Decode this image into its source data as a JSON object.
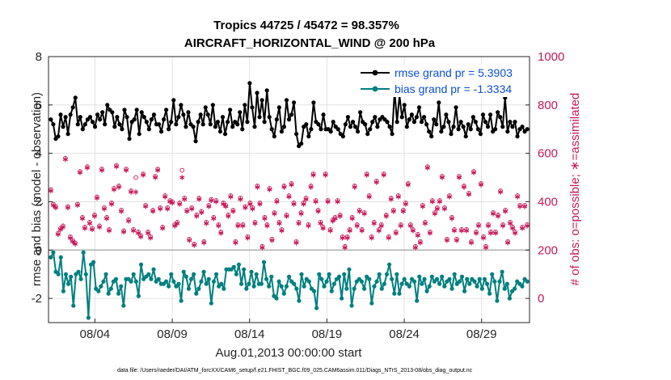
{
  "chart_data": {
    "type": "line",
    "title": "Tropics 44725 / 45472 = 98.357%",
    "subtitle": "AIRCRAFT_HORIZONTAL_WIND @ 200 hPa",
    "xlabel": "Aug.01,2013 00:00:00 start",
    "ylabel": "rmse and bias (model - observation)",
    "ylabel_right": "# of obs: o=possible; ∗=assimilated",
    "x_ticks": [
      "08/04",
      "08/09",
      "08/14",
      "08/19",
      "08/24",
      "08/29"
    ],
    "x_range": [
      1.0,
      32.1
    ],
    "x_tick_values": [
      4,
      9,
      14,
      19,
      24,
      29
    ],
    "ylim": [
      -3,
      8
    ],
    "y_ticks": [
      -2,
      0,
      2,
      4,
      6,
      8
    ],
    "ylim_right": [
      -100,
      1000
    ],
    "y_ticks_right": [
      0,
      200,
      400,
      600,
      800,
      1000
    ],
    "legend_position": "top-right",
    "series": [
      {
        "name": "rmse grand pr = 5.3903",
        "axis": "left",
        "color": "#000000",
        "values": [
          5.4,
          5.2,
          4.6,
          4.7,
          5.6,
          5.1,
          5.5,
          4.8,
          5.6,
          5.9,
          6.3,
          5.2,
          5.5,
          5.0,
          5.2,
          5.4,
          5.5,
          5.3,
          5.1,
          5.6,
          5.4,
          5.7,
          5.2,
          6.0,
          5.8,
          5.7,
          5.1,
          5.5,
          5.2,
          5.0,
          5.8,
          5.5,
          4.6,
          5.3,
          5.4,
          5.8,
          4.8,
          5.7,
          5.5,
          5.3,
          5.0,
          5.4,
          5.6,
          5.2,
          5.2,
          4.9,
          5.4,
          5.8,
          5.0,
          5.3,
          6.2,
          5.2,
          5.5,
          6.0,
          5.6,
          5.1,
          5.7,
          5.2,
          5.1,
          4.5,
          5.3,
          5.6,
          5.2,
          5.9,
          5.6,
          5.2,
          6.0,
          5.1,
          5.3,
          4.9,
          5.5,
          4.8,
          5.3,
          5.8,
          5.1,
          5.3,
          5.2,
          5.7,
          5.0,
          6.0,
          5.3,
          6.9,
          5.9,
          5.1,
          6.5,
          5.5,
          6.2,
          5.3,
          6.6,
          5.5,
          5.0,
          4.7,
          5.4,
          5.9,
          4.9,
          5.1,
          6.2,
          5.4,
          5.6,
          6.1,
          4.8,
          4.3,
          4.4,
          5.1,
          5.2,
          4.7,
          5.0,
          6.1,
          5.3,
          5.2,
          5.0,
          5.6,
          5.0,
          5.0,
          4.9,
          5.3,
          5.1,
          5.0,
          4.8,
          4.7,
          5.2,
          5.5,
          5.1,
          5.3,
          5.1,
          4.9,
          5.7,
          5.3,
          5.2,
          4.8,
          5.0,
          5.3,
          5.5,
          5.1,
          5.4,
          5.5,
          5.4,
          5.3,
          5.1,
          4.8,
          6.6,
          5.3,
          6.4,
          5.5,
          6.0,
          5.1,
          5.4,
          5.6,
          5.3,
          5.5,
          5.9,
          5.3,
          5.5,
          5.2,
          4.9,
          4.7,
          5.4,
          5.2,
          6.1,
          4.9,
          5.1,
          5.6,
          5.3,
          4.8,
          5.1,
          5.9,
          5.0,
          5.3,
          5.1,
          4.7,
          5.2,
          5.0,
          5.5,
          5.3,
          5.0,
          4.8,
          5.6,
          5.3,
          5.1,
          5.6,
          4.9,
          5.0,
          5.7,
          5.5,
          5.1,
          6.3,
          4.9,
          5.3,
          5.1,
          5.3,
          4.7,
          5.0,
          5.1,
          4.9,
          5.0
        ]
      },
      {
        "name": "bias grand pr = -1.3334",
        "axis": "left",
        "color": "#007f7f",
        "values": [
          -0.3,
          -0.1,
          -0.9,
          -1.0,
          -0.3,
          -1.7,
          -1.0,
          -1.4,
          -1.1,
          -2.3,
          -1.0,
          -0.9,
          -1.2,
          -0.1,
          -1.0,
          -2.8,
          -0.6,
          -0.5,
          -1.6,
          -1.7,
          -1.5,
          -1.3,
          -1.0,
          -1.8,
          -1.6,
          -1.3,
          -1.2,
          -1.8,
          -1.5,
          -2.3,
          -1.2,
          -1.2,
          -1.3,
          -1.0,
          -1.3,
          -1.9,
          -0.6,
          -1.2,
          -1.1,
          -1.0,
          -1.2,
          -0.8,
          -1.3,
          -1.2,
          -1.4,
          -1.4,
          -1.3,
          -1.5,
          -1.0,
          -1.3,
          -1.5,
          -1.4,
          -2.1,
          -0.9,
          -1.1,
          -1.6,
          -1.2,
          -1.0,
          -1.8,
          -1.6,
          -1.3,
          -0.9,
          -1.4,
          -1.2,
          -2.2,
          -1.3,
          -1.0,
          -1.5,
          -1.4,
          -1.6,
          -0.8,
          -0.8,
          -0.8,
          -0.7,
          -1.0,
          -0.6,
          -1.4,
          -0.8,
          -1.6,
          -1.4,
          -0.9,
          -1.5,
          -1.0,
          -1.4,
          -1.4,
          -0.5,
          -1.2,
          -1.5,
          -1.1,
          -1.9,
          -2.0,
          -1.3,
          -1.5,
          -1.8,
          -1.5,
          -1.1,
          -1.3,
          -1.4,
          -1.6,
          -2.1,
          -1.0,
          -1.5,
          -1.2,
          -1.3,
          -1.6,
          -1.7,
          -2.4,
          -1.0,
          -1.2,
          -1.5,
          -1.3,
          -1.0,
          -1.7,
          -1.4,
          -1.2,
          -1.1,
          -2.0,
          -1.0,
          -1.6,
          -0.8,
          -2.3,
          -1.6,
          -1.3,
          -1.2,
          -1.3,
          -1.6,
          -1.1,
          -1.2,
          -2.2,
          -1.5,
          -1.3,
          -1.0,
          -1.6,
          -1.4,
          -1.0,
          -0.6,
          -1.2,
          -1.8,
          -1.0,
          -1.8,
          -1.4,
          -1.2,
          -1.4,
          -1.5,
          -1.2,
          -1.3,
          -2.1,
          -1.1,
          -1.4,
          -1.2,
          -1.7,
          -1.5,
          -1.1,
          -1.3,
          -1.2,
          -1.4,
          -1.1,
          -1.5,
          -1.3,
          -1.2,
          -1.6,
          -1.0,
          -1.4,
          -1.3,
          -1.1,
          -1.7,
          -1.2,
          -1.4,
          -1.2,
          -1.3,
          -1.5,
          -1.2,
          -1.6,
          -1.2,
          -1.4,
          -1.8,
          -1.0,
          -1.3,
          -2.1,
          -1.3,
          -0.9,
          -1.6,
          -1.4,
          -2.0,
          -1.7,
          -1.6,
          -1.3,
          -1.4,
          -1.5,
          -1.2,
          -1.3
        ]
      },
      {
        "name": "assimilated",
        "axis": "right",
        "color": "#c8185a",
        "marker": "asterisk",
        "values": [
          445,
          385,
          375,
          265,
          285,
          295,
          575,
          375,
          250,
          235,
          225,
          385,
          520,
          330,
          290,
          540,
          310,
          285,
          340,
          415,
          295,
          530,
          370,
          330,
          280,
          390,
          450,
          545,
          460,
          360,
          275,
          530,
          320,
          440,
          280,
          440,
          270,
          255,
          510,
          380,
          270,
          250,
          360,
          500,
          530,
          370,
          290,
          420,
          370,
          400,
          395,
          300,
          310,
          390,
          500,
          410,
          360,
          240,
          370,
          220,
          340,
          410,
          355,
          230,
          310,
          380,
          405,
          330,
          400,
          300,
          270,
          390,
          380,
          340,
          420,
          360,
          230,
          300,
          410,
          300,
          375,
          250,
          390,
          370,
          310,
          460,
          390,
          210,
          330,
          300,
          450,
          240,
          350,
          400,
          310,
          280,
          460,
          340,
          420,
          470,
          390,
          230,
          310,
          350,
          390,
          410,
          300,
          460,
          510,
          400,
          360,
          310,
          290,
          510,
          400,
          280,
          320,
          330,
          400,
          340,
          250,
          210,
          250,
          280,
          330,
          460,
          300,
          360,
          280,
          350,
          510,
          420,
          250,
          310,
          480,
          280,
          300,
          510,
          340,
          250,
          410,
          360,
          270,
          420,
          300,
          360,
          390,
          470,
          300,
          280,
          210,
          260,
          230,
          380,
          310,
          540,
          270,
          400,
          350,
          370,
          400,
          500,
          370,
          240,
          420,
          330,
          280,
          240,
          500,
          280,
          460,
          280,
          430,
          230,
          520,
          270,
          300,
          470,
          250,
          210,
          300,
          270,
          350,
          270,
          340,
          440,
          300,
          360,
          230,
          310,
          290,
          270,
          420,
          380,
          290,
          380,
          300
        ]
      },
      {
        "name": "possible",
        "axis": "right",
        "color": "#c8185a",
        "marker": "circle",
        "values": [
          450,
          390,
          380,
          270,
          290,
          300,
          580,
          380,
          255,
          240,
          230,
          390,
          525,
          335,
          295,
          545,
          315,
          290,
          345,
          420,
          300,
          535,
          375,
          335,
          285,
          395,
          455,
          550,
          465,
          365,
          280,
          535,
          325,
          445,
          285,
          500,
          275,
          260,
          515,
          385,
          275,
          255,
          365,
          505,
          535,
          375,
          295,
          425,
          375,
          405,
          400,
          305,
          315,
          395,
          530,
          415,
          365,
          245,
          375,
          225,
          345,
          415,
          360,
          235,
          315,
          385,
          410,
          335,
          405,
          305,
          275,
          395,
          385,
          345,
          425,
          365,
          235,
          305,
          415,
          305,
          380,
          255,
          395,
          375,
          315,
          465,
          395,
          215,
          335,
          305,
          455,
          245,
          355,
          405,
          315,
          285,
          465,
          345,
          425,
          475,
          395,
          235,
          315,
          355,
          395,
          415,
          305,
          465,
          515,
          405,
          365,
          315,
          295,
          515,
          405,
          285,
          325,
          335,
          405,
          345,
          255,
          215,
          255,
          285,
          335,
          465,
          305,
          365,
          285,
          355,
          515,
          425,
          255,
          315,
          485,
          285,
          305,
          515,
          345,
          255,
          415,
          365,
          275,
          425,
          305,
          365,
          395,
          475,
          305,
          285,
          215,
          265,
          235,
          385,
          315,
          545,
          275,
          405,
          355,
          375,
          405,
          505,
          375,
          245,
          425,
          335,
          285,
          245,
          505,
          285,
          465,
          285,
          435,
          235,
          525,
          275,
          305,
          475,
          255,
          215,
          305,
          275,
          355,
          275,
          345,
          445,
          305,
          365,
          235,
          315,
          295,
          275,
          425,
          385,
          295,
          385,
          305
        ]
      }
    ]
  },
  "footer": {
    "note": "data file: /Users/raeder/DAI/ATM_forcXX/CAM6_setup/f.e21.FHIST_BGC.f09_025.CAM6assim.011/Diags_NTrS_2013-08/obs_diag_output.nc"
  }
}
